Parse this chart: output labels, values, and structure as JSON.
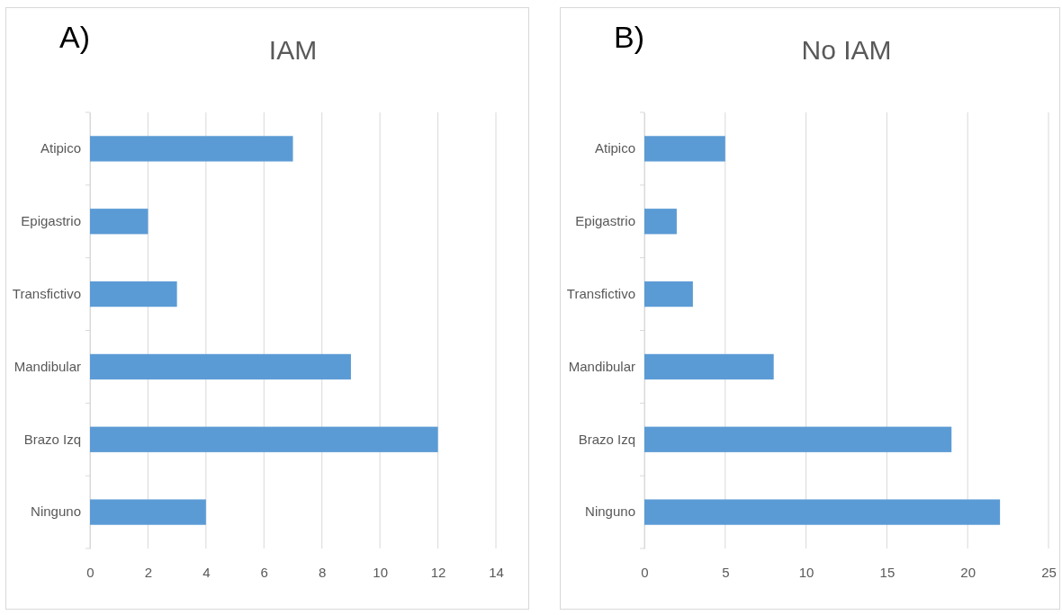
{
  "chart_data": [
    {
      "type": "bar",
      "orientation": "horizontal",
      "title": "IAM",
      "annotations": [
        "A)"
      ],
      "categories": [
        "Atipico",
        "Epigastrio",
        "Transfictivo",
        "Mandibular",
        "Brazo Izq",
        "Ninguno"
      ],
      "values": [
        7,
        2,
        3,
        9,
        12,
        4
      ],
      "color": "#5b9bd5",
      "xlim": [
        0,
        14
      ],
      "xticks": [
        0,
        2,
        4,
        6,
        8,
        10,
        12,
        14
      ],
      "grid": "x"
    },
    {
      "type": "bar",
      "orientation": "horizontal",
      "title": "No IAM",
      "annotations": [
        "B)"
      ],
      "categories": [
        "Atipico",
        "Epigastrio",
        "Transfictivo",
        "Mandibular",
        "Brazo Izq",
        "Ninguno"
      ],
      "values": [
        5,
        2,
        3,
        8,
        19,
        22
      ],
      "color": "#5b9bd5",
      "xlim": [
        0,
        25
      ],
      "xticks": [
        0,
        5,
        10,
        15,
        20,
        25
      ],
      "grid": "x"
    }
  ]
}
